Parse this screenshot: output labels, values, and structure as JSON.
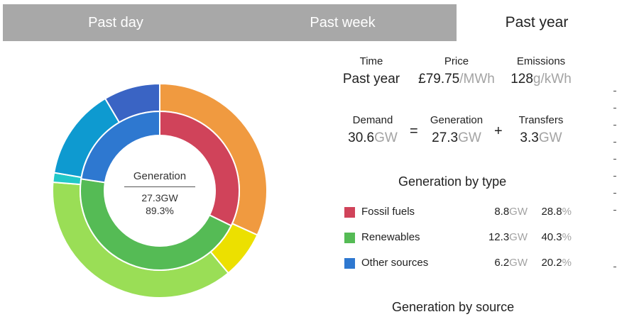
{
  "tabs": [
    {
      "label": "Past day",
      "active": false
    },
    {
      "label": "Past week",
      "active": false
    },
    {
      "label": "Past year",
      "active": true
    }
  ],
  "stats": {
    "time": {
      "label": "Time",
      "value": "Past year"
    },
    "price": {
      "label": "Price",
      "value": "£79.75",
      "unit": "/MWh"
    },
    "emissions": {
      "label": "Emissions",
      "value": "128",
      "unit": "g/kWh"
    },
    "demand": {
      "label": "Demand",
      "value": "30.6",
      "unit": "GW"
    },
    "generation": {
      "label": "Generation",
      "value": "27.3",
      "unit": "GW"
    },
    "transfers": {
      "label": "Transfers",
      "value": "3.3",
      "unit": "GW"
    },
    "equals": "=",
    "plus": "+"
  },
  "center": {
    "label": "Generation",
    "value": "27.3GW",
    "percent": "89.3%"
  },
  "generation_by_type": {
    "title": "Generation by type",
    "items": [
      {
        "name": "Fossil fuels",
        "gw": "8.8",
        "gw_unit": "GW",
        "pct": "28.8",
        "pct_unit": "%",
        "color": "#d0435a"
      },
      {
        "name": "Renewables",
        "gw": "12.3",
        "gw_unit": "GW",
        "pct": "40.3",
        "pct_unit": "%",
        "color": "#55bb55"
      },
      {
        "name": "Other sources",
        "gw": "6.2",
        "gw_unit": "GW",
        "pct": "20.2",
        "pct_unit": "%",
        "color": "#2e78d0"
      }
    ]
  },
  "generation_by_source": {
    "title": "Generation by source"
  },
  "chart_data": {
    "type": "pie",
    "inner_ring": {
      "categories": [
        "Fossil fuels",
        "Renewables",
        "Other sources"
      ],
      "values": [
        28.8,
        40.3,
        20.2
      ],
      "colors": [
        "#d0435a",
        "#55bb55",
        "#2e78d0"
      ]
    },
    "outer_ring": {
      "values": [
        28.8,
        6.5,
        33.8,
        1.3,
        12.5,
        7.7
      ],
      "colors": [
        "#f09a40",
        "#ece000",
        "#9ade56",
        "#22c8c8",
        "#0e9ad0",
        "#3a64c4"
      ]
    },
    "start_angle_deg": 0,
    "direction": "clockwise"
  }
}
